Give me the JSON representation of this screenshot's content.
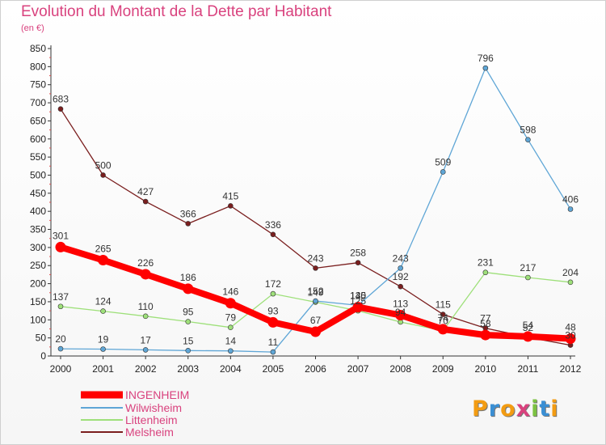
{
  "title": "Evolution du Montant de la Dette par Habitant",
  "subtitle": "(en €)",
  "chart_data": {
    "type": "line",
    "title": "Evolution du Montant de la Dette par Habitant",
    "subtitle": "(en €)",
    "x": [
      "2000",
      "2001",
      "2002",
      "2003",
      "2004",
      "2005",
      "2006",
      "2007",
      "2008",
      "2009",
      "2010",
      "2011",
      "2012"
    ],
    "ylim": [
      0,
      850
    ],
    "yticks": [
      0,
      50,
      100,
      150,
      200,
      250,
      300,
      350,
      400,
      450,
      500,
      550,
      600,
      650,
      700,
      750,
      800,
      850
    ],
    "grid": false,
    "legend_position": "bottom-left",
    "series": [
      {
        "name": "INGENHEIM",
        "color": "#ff0000",
        "values": [
          301,
          265,
          226,
          186,
          146,
          93,
          67,
          135,
          113,
          74,
          58,
          54,
          48
        ]
      },
      {
        "name": "Wilwisheim",
        "color": "#5fa6d6",
        "values": [
          20,
          19,
          17,
          15,
          14,
          11,
          152,
          140,
          243,
          509,
          796,
          598,
          406
        ]
      },
      {
        "name": "Littenheim",
        "color": "#9ee07a",
        "values": [
          137,
          124,
          110,
          95,
          79,
          172,
          149,
          125,
          94,
          70,
          231,
          217,
          204
        ]
      },
      {
        "name": "Melsheim",
        "color": "#7a1e1e",
        "values": [
          683,
          500,
          427,
          366,
          415,
          336,
          243,
          258,
          192,
          115,
          77,
          52,
          30
        ]
      }
    ]
  },
  "branding": {
    "letters": [
      "P",
      "r",
      "o",
      "x",
      "i",
      "t",
      "i"
    ],
    "colors": [
      "#f39c12",
      "#3a8fd4",
      "#f39c12",
      "#d9427e",
      "#7cc242",
      "#3a8fd4",
      "#f39c12"
    ]
  }
}
